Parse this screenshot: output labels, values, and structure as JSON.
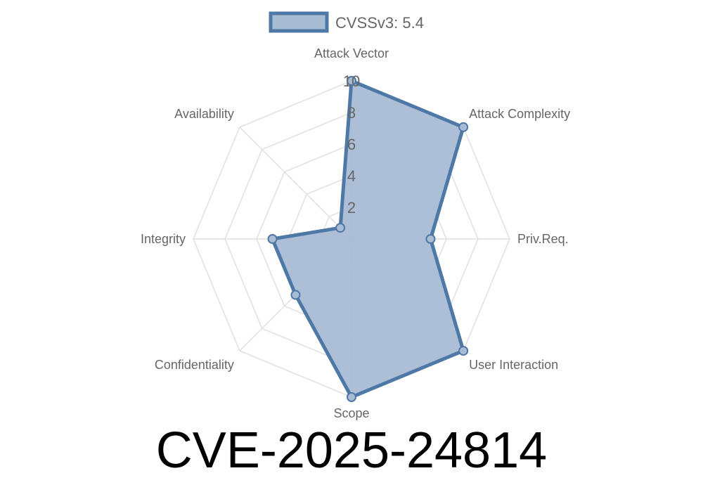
{
  "chart_data": {
    "type": "radar",
    "title": "CVE-2025-24814",
    "axes": [
      "Attack Vector",
      "Attack Complexity",
      "Priv.Req.",
      "User Interaction",
      "Scope",
      "Confidentiality",
      "Integrity",
      "Availability"
    ],
    "rlim": [
      0,
      10
    ],
    "ticks": [
      "2",
      "4",
      "6",
      "8",
      "10"
    ],
    "tick_values": [
      2,
      4,
      6,
      8,
      10
    ],
    "grid": true,
    "legend_position": "top",
    "series": [
      {
        "name": "CVSSv3: 5.4",
        "values": [
          10,
          10,
          5,
          10,
          10,
          5,
          5,
          1
        ],
        "color": "#4e79a7",
        "fill": "#a8bcd4"
      }
    ]
  }
}
